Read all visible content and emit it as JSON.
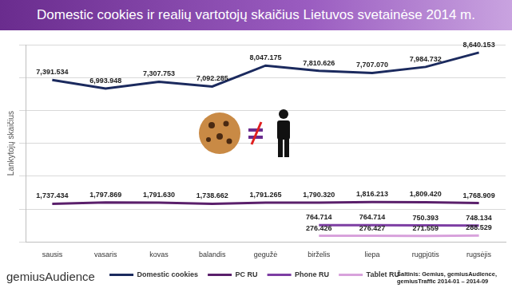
{
  "chart_data": {
    "type": "line",
    "title": "Domestic cookies ir realių vartotojų skaičius Lietuvos svetainėse 2014 m.",
    "y_label": "Lankytojų skaičius",
    "source": "Šaltinis: Gemius, gemiusAudience, gemiusTraffic 2014-01 – 2014-09",
    "logo": "gemiusAudience",
    "categories": [
      "sausis",
      "vasaris",
      "kovas",
      "balandis",
      "gegužė",
      "birželis",
      "liepa",
      "rugpjūtis",
      "rugsėjis"
    ],
    "series": [
      {
        "name": "Domestic cookies",
        "color": "#1b2a5e",
        "values": [
          7391534,
          6993948,
          7307753,
          7092285,
          8047175,
          7810626,
          7707070,
          7984732,
          8640153
        ],
        "value_labels": [
          "7,391.534",
          "6,993.948",
          "7,307.753",
          "7,092.285",
          "8,047.175",
          "7,810.626",
          "7,707.070",
          "7,984.732",
          "8,640.153"
        ]
      },
      {
        "name": "PC RU",
        "color": "#5a1f6b",
        "values": [
          1737434,
          1797869,
          1791630,
          1738662,
          1791265,
          1790320,
          1816213,
          1809420,
          1768909
        ],
        "value_labels": [
          "1,737.434",
          "1,797.869",
          "1,791.630",
          "1,738.662",
          "1,791.265",
          "1,790.320",
          "1,816.213",
          "1,809.420",
          "1,768.909"
        ]
      },
      {
        "name": "Phone RU",
        "color": "#7d3ea3",
        "values": [
          null,
          null,
          null,
          null,
          null,
          764714,
          764714,
          750393,
          748134
        ],
        "value_labels": [
          null,
          null,
          null,
          null,
          null,
          "764.714",
          "764.714",
          "750.393",
          "748.134"
        ]
      },
      {
        "name": "Tablet RU",
        "color": "#d8a2dc",
        "values": [
          null,
          null,
          null,
          null,
          null,
          276426,
          276427,
          271559,
          288529
        ],
        "value_labels": [
          null,
          null,
          null,
          null,
          null,
          "276.426",
          "276.427",
          "271.559",
          "288.529"
        ]
      }
    ],
    "ylim": [
      0,
      9000000
    ],
    "yticks": [
      0,
      1500000,
      3000000,
      4500000,
      6000000,
      7500000,
      9000000
    ],
    "grid": true,
    "legend": "bottom",
    "data_labels": true,
    "tick_labels": "x"
  }
}
